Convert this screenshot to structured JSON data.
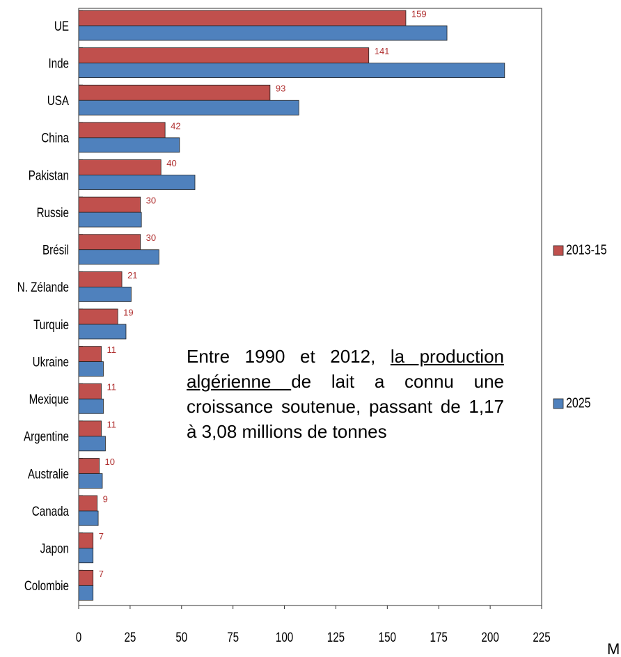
{
  "chart_data": {
    "type": "hbar",
    "categories": [
      "UE",
      "Inde",
      "USA",
      "China",
      "Pakistan",
      "Russie",
      "Brésil",
      "N. Zélande",
      "Turquie",
      "Ukraine",
      "Mexique",
      "Argentine",
      "Australie",
      "Canada",
      "Japon",
      "Colombie"
    ],
    "series": [
      {
        "name": "2013-15",
        "color": "#c0504d",
        "values": [
          159,
          141,
          93,
          42,
          40,
          30,
          30,
          21,
          19,
          11,
          11,
          11,
          10,
          9,
          7,
          7
        ]
      },
      {
        "name": "2025",
        "color": "#4f81bd",
        "values": [
          179,
          207,
          107,
          49,
          56.5,
          30.5,
          39,
          25.5,
          23,
          12,
          12,
          13,
          11.5,
          9.5,
          7,
          7
        ]
      }
    ],
    "xlim": [
      0,
      225
    ],
    "xticks": [
      0,
      25,
      50,
      75,
      100,
      125,
      150,
      175,
      200,
      225
    ],
    "x_label": "M",
    "data_labels_series": 0,
    "annotation": [
      "Entre 1990 et 2012, ",
      "la production algérienne ",
      "de lait a connu une croissance soutenue, passant de 1,17 à 3,08 millions de tonnes"
    ],
    "legend": "right"
  }
}
